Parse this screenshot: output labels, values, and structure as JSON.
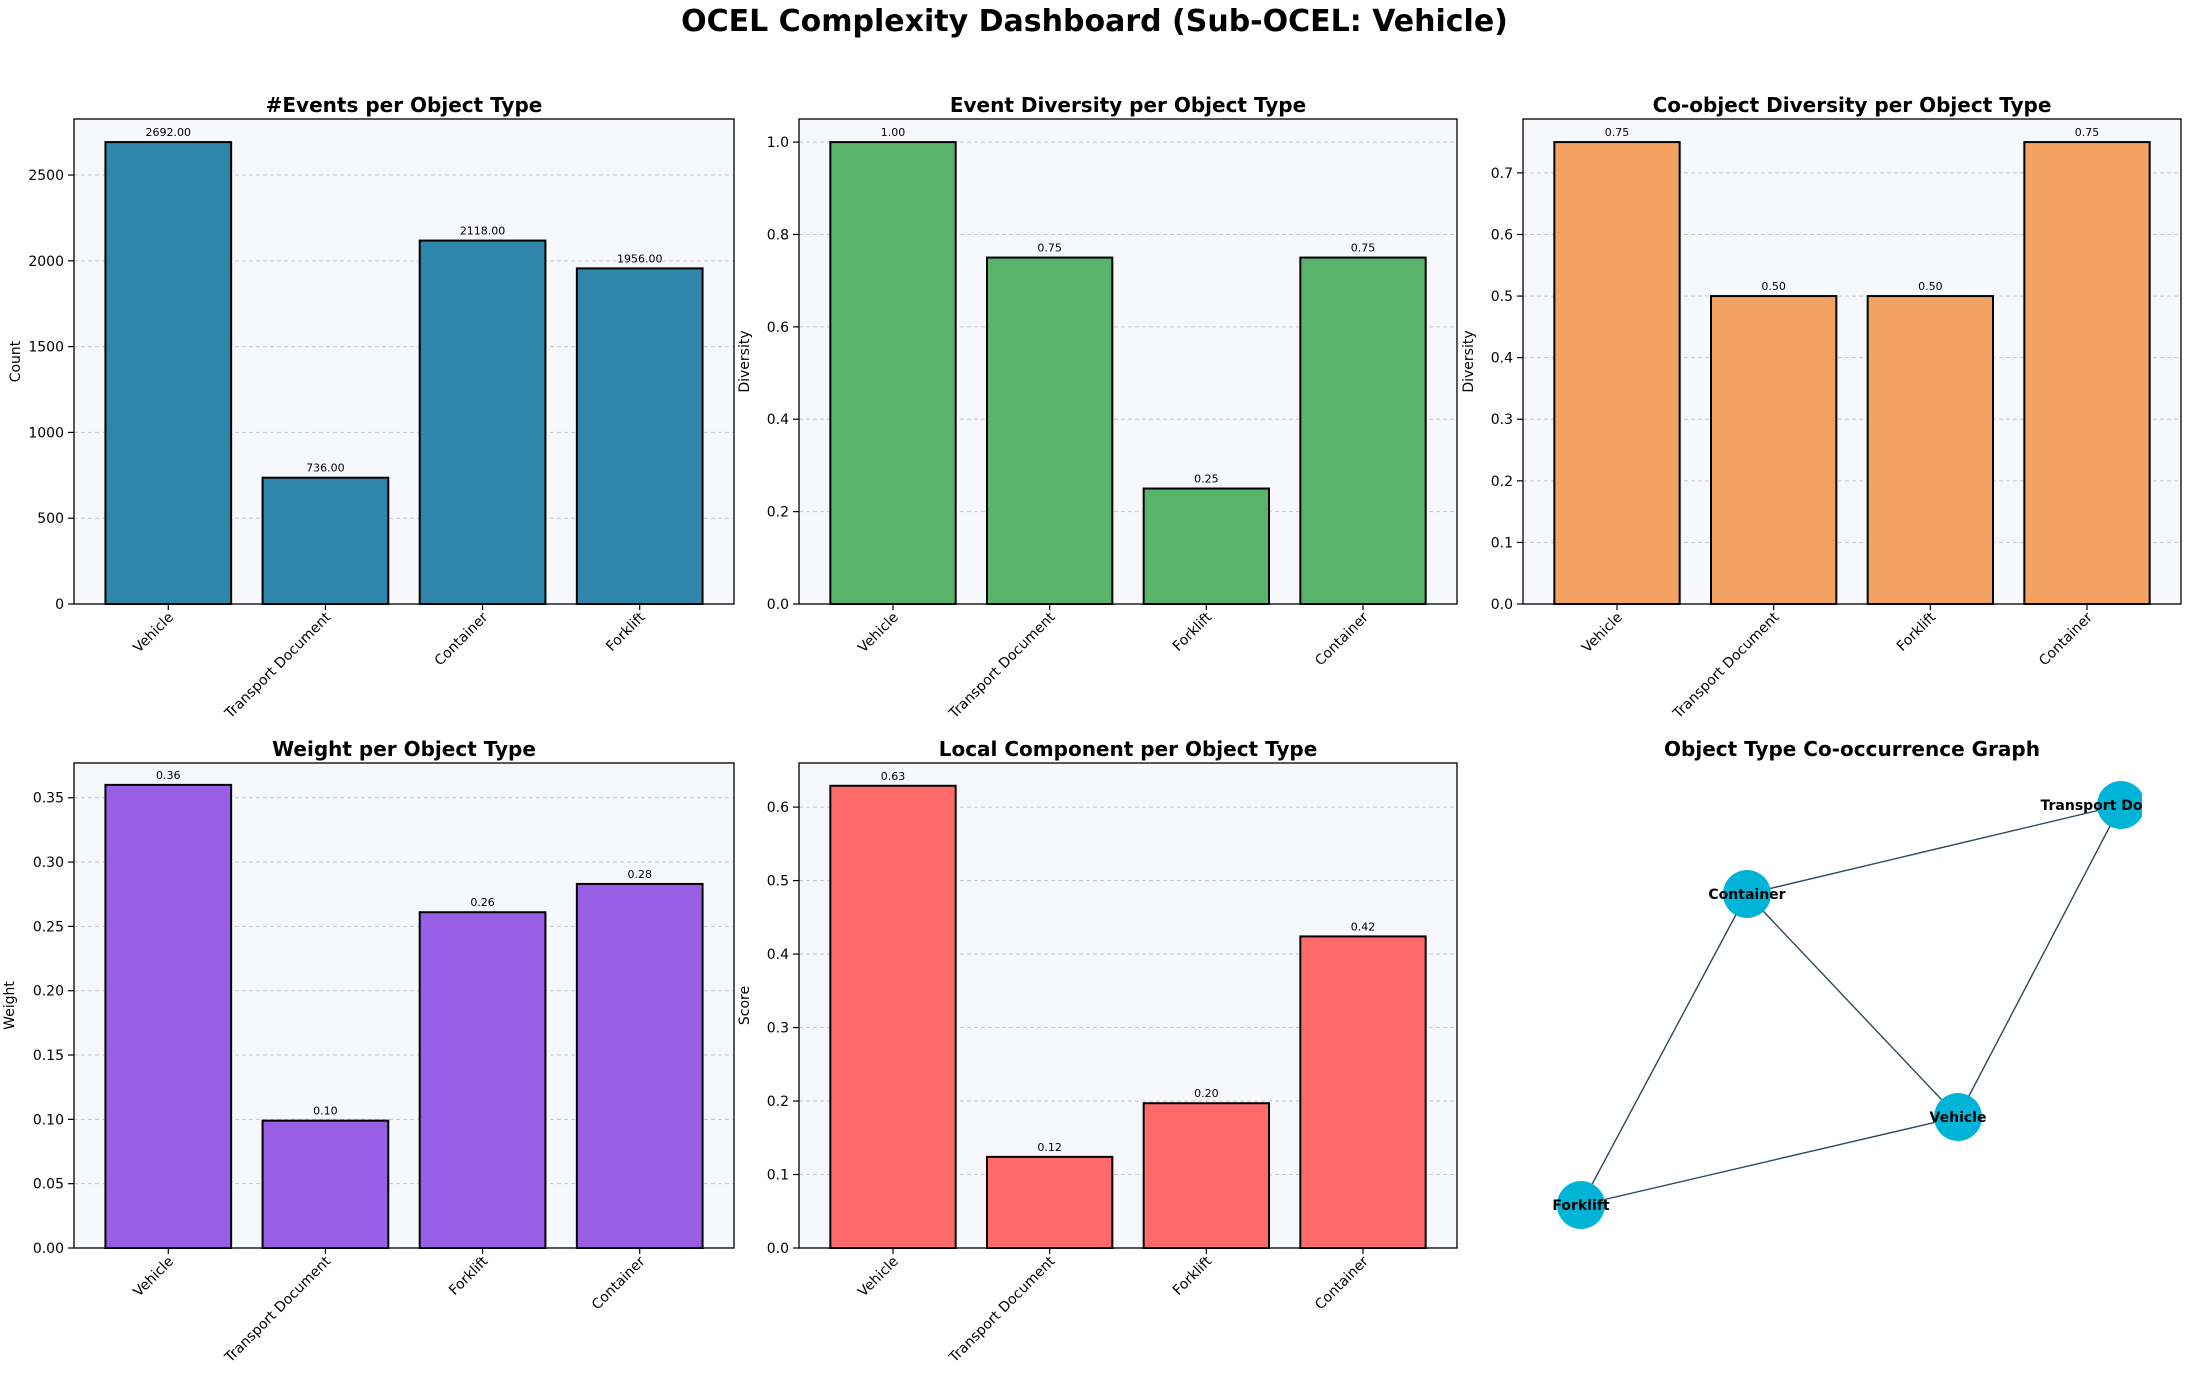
{
  "title": "OCEL Complexity Dashboard (Sub-OCEL: Vehicle)",
  "chart_data": [
    {
      "type": "bar",
      "title": "#Events per Object Type",
      "ylabel": "Count",
      "xlabel": "",
      "categories": [
        "Vehicle",
        "Transport Document",
        "Container",
        "Forklift"
      ],
      "values": [
        2692,
        736,
        2118,
        1956
      ],
      "value_labels": [
        "2692.00",
        "736.00",
        "2118.00",
        "1956.00"
      ],
      "ylim": [
        0,
        2826.6
      ],
      "yticks": [
        0,
        500,
        1000,
        1500,
        2000,
        2500
      ],
      "ytick_labels": [
        "0",
        "500",
        "1000",
        "1500",
        "2000",
        "2500"
      ],
      "color": "#2e86ab",
      "grid": "y-dashed"
    },
    {
      "type": "bar",
      "title": "Event Diversity per Object Type",
      "ylabel": "Diversity",
      "xlabel": "",
      "categories": [
        "Vehicle",
        "Transport Document",
        "Forklift",
        "Container"
      ],
      "values": [
        1.0,
        0.75,
        0.25,
        0.75
      ],
      "value_labels": [
        "1.00",
        "0.75",
        "0.25",
        "0.75"
      ],
      "ylim": [
        0,
        1.05
      ],
      "yticks": [
        0,
        0.2,
        0.4,
        0.6,
        0.8,
        1.0
      ],
      "ytick_labels": [
        "0.0",
        "0.2",
        "0.4",
        "0.6",
        "0.8",
        "1.0"
      ],
      "color": "#59b36a",
      "grid": "y-dashed"
    },
    {
      "type": "bar",
      "title": "Co-object Diversity per Object Type",
      "ylabel": "Diversity",
      "xlabel": "",
      "categories": [
        "Vehicle",
        "Transport Document",
        "Forklift",
        "Container"
      ],
      "values": [
        0.75,
        0.5,
        0.5,
        0.75
      ],
      "value_labels": [
        "0.75",
        "0.50",
        "0.50",
        "0.75"
      ],
      "ylim": [
        0,
        0.7875
      ],
      "yticks": [
        0,
        0.1,
        0.2,
        0.3,
        0.4,
        0.5,
        0.6,
        0.7
      ],
      "ytick_labels": [
        "0.0",
        "0.1",
        "0.2",
        "0.3",
        "0.4",
        "0.5",
        "0.6",
        "0.7"
      ],
      "color": "#f2a361",
      "grid": "y-dashed"
    },
    {
      "type": "bar",
      "title": "Weight per Object Type",
      "ylabel": "Weight",
      "xlabel": "",
      "categories": [
        "Vehicle",
        "Transport Document",
        "Forklift",
        "Container"
      ],
      "values": [
        0.36,
        0.099,
        0.261,
        0.283
      ],
      "value_labels": [
        "0.36",
        "0.10",
        "0.26",
        "0.28"
      ],
      "ylim": [
        0,
        0.377
      ],
      "yticks": [
        0,
        0.05,
        0.1,
        0.15,
        0.2,
        0.25,
        0.3,
        0.35
      ],
      "ytick_labels": [
        "0.00",
        "0.05",
        "0.10",
        "0.15",
        "0.20",
        "0.25",
        "0.30",
        "0.35"
      ],
      "color": "#995ee6",
      "grid": "y-dashed"
    },
    {
      "type": "bar",
      "title": "Local Component per Object Type",
      "ylabel": "Score",
      "xlabel": "",
      "categories": [
        "Vehicle",
        "Transport Document",
        "Forklift",
        "Container"
      ],
      "values": [
        0.629,
        0.124,
        0.197,
        0.424
      ],
      "value_labels": [
        "0.63",
        "0.12",
        "0.20",
        "0.42"
      ],
      "ylim": [
        0,
        0.66
      ],
      "yticks": [
        0,
        0.1,
        0.2,
        0.3,
        0.4,
        0.5,
        0.6
      ],
      "ytick_labels": [
        "0.0",
        "0.1",
        "0.2",
        "0.3",
        "0.4",
        "0.5",
        "0.6"
      ],
      "color": "#ff6b6b",
      "grid": "y-dashed"
    },
    {
      "type": "network",
      "title": "Object Type Co-occurrence Graph",
      "nodes": [
        "Transport Document",
        "Container",
        "Vehicle",
        "Forklift"
      ],
      "edges": [
        [
          "Container",
          "Transport Document"
        ],
        [
          "Container",
          "Vehicle"
        ],
        [
          "Container",
          "Forklift"
        ],
        [
          "Vehicle",
          "Transport Document"
        ],
        [
          "Vehicle",
          "Forklift"
        ]
      ],
      "node_color": "#00b4d8",
      "edge_color": "#2c4a5e"
    }
  ]
}
